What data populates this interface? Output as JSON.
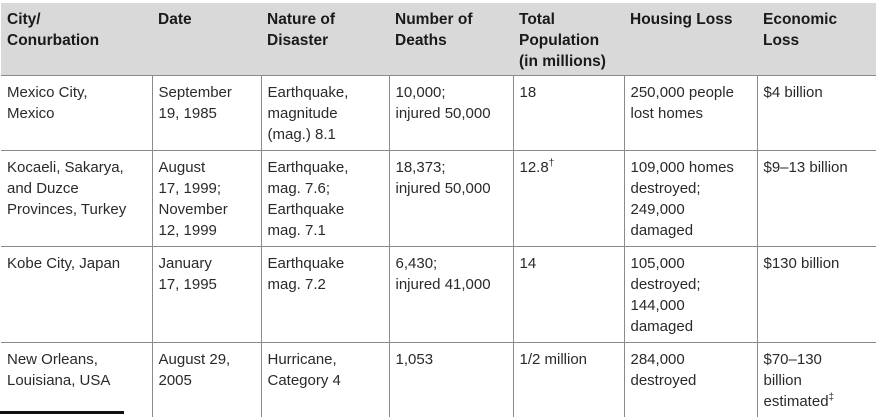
{
  "table": {
    "headers": [
      "City/\nConurbation",
      "Date",
      "Nature of\nDisaster",
      "Number of\nDeaths",
      "Total\nPopulation\n(in millions)",
      "Housing Loss",
      "Economic\nLoss"
    ],
    "rows": [
      {
        "city": "Mexico City,\nMexico",
        "date": "September\n19, 1985",
        "nature": "Earthquake,\nmagnitude\n(mag.) 8.1",
        "deaths": "10,000;\ninjured 50,000",
        "population": "18",
        "population_mark": "",
        "housing": "250,000 people\nlost homes",
        "economic": "$4 billion",
        "economic_mark": ""
      },
      {
        "city": "Kocaeli, Sakarya,\nand Duzce\nProvinces, Turkey",
        "date": "August\n17, 1999;\nNovember\n12, 1999",
        "nature": "Earthquake,\nmag. 7.6;\nEarthquake\nmag. 7.1",
        "deaths": "18,373;\ninjured 50,000",
        "population": "12.8",
        "population_mark": "†",
        "housing": "109,000 homes\ndestroyed;\n249,000\ndamaged",
        "economic": "$9–13 billion",
        "economic_mark": ""
      },
      {
        "city": "Kobe City, Japan",
        "date": "January\n17, 1995",
        "nature": "Earthquake\nmag. 7.2",
        "deaths": "6,430;\ninjured 41,000",
        "population": "14",
        "population_mark": "",
        "housing": "105,000\ndestroyed;\n144,000\ndamaged",
        "economic": "$130 billion",
        "economic_mark": ""
      },
      {
        "city": "New Orleans,\nLouisiana, USA",
        "date": "August 29,\n2005",
        "nature": "Hurricane,\nCategory 4",
        "deaths": "1,053",
        "population": "1/2 million",
        "population_mark": "",
        "housing": "284,000\ndestroyed",
        "economic": "$70–130\nbillion\nestimated",
        "economic_mark": "‡"
      }
    ]
  }
}
